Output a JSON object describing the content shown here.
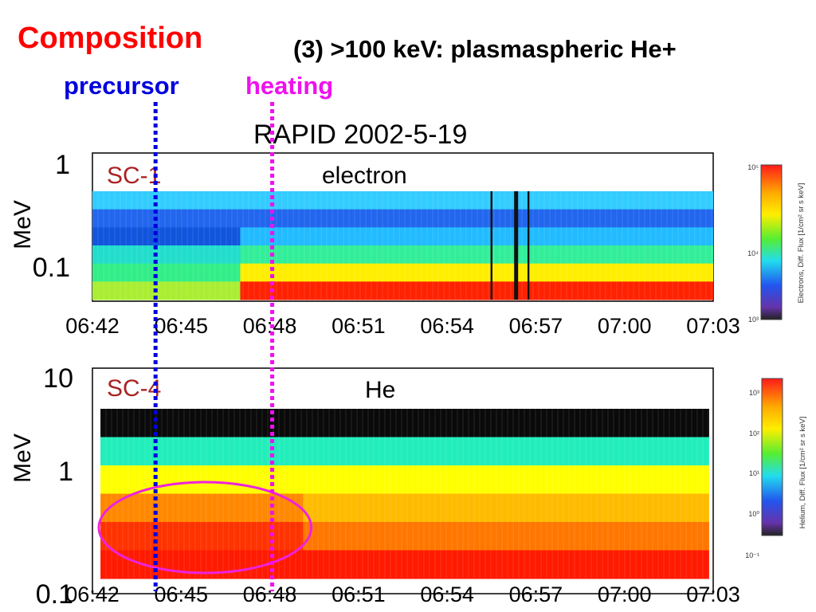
{
  "slide": {
    "title": "Composition",
    "subtitle": "(3) >100 keV: plasmaspheric He+",
    "markers": [
      {
        "label": "precursor",
        "color": "#0000dd",
        "time": "06:44"
      },
      {
        "label": "heating",
        "color": "#ee11ee",
        "time": "06:48"
      }
    ],
    "figure_title": "RAPID   2002-5-19"
  },
  "chart_data": [
    {
      "type": "heatmap",
      "panel_label": "SC-1",
      "species": "electron",
      "ylabel": "MeV",
      "yscale": "log",
      "y_tick_labels": [
        "1",
        "0.1"
      ],
      "x_tick_labels": [
        "06:42",
        "06:45",
        "06:48",
        "06:51",
        "06:54",
        "06:57",
        "07:00",
        "07:03"
      ],
      "xlim": [
        "06:42",
        "07:03"
      ],
      "colorbar": {
        "label": "Electrons, Diff. Flux [1/cm² sr s keV]",
        "scale": "log",
        "tick_labels": [
          "10⁵",
          "10⁴",
          "10³"
        ]
      },
      "bands": [
        {
          "row": 1,
          "segments": [
            {
              "from": "06:42",
              "to": "07:03",
              "color": "#33ccff"
            }
          ]
        },
        {
          "row": 2,
          "segments": [
            {
              "from": "06:42",
              "to": "07:03",
              "color": "#2266ee"
            }
          ]
        },
        {
          "row": 3,
          "segments": [
            {
              "from": "06:42",
              "to": "06:47",
              "color": "#1155dd"
            },
            {
              "from": "06:47",
              "to": "07:03",
              "color": "#22bbff"
            }
          ]
        },
        {
          "row": 4,
          "segments": [
            {
              "from": "06:42",
              "to": "06:47",
              "color": "#22ddcc"
            },
            {
              "from": "06:47",
              "to": "07:03",
              "color": "#33ee99"
            }
          ]
        },
        {
          "row": 5,
          "segments": [
            {
              "from": "06:42",
              "to": "06:47",
              "color": "#33ee88"
            },
            {
              "from": "06:47",
              "to": "07:03",
              "color": "#ffee00"
            }
          ]
        },
        {
          "row": 6,
          "segments": [
            {
              "from": "06:42",
              "to": "06:47",
              "color": "#aaee33"
            },
            {
              "from": "06:47",
              "to": "07:03",
              "color": "#ff2200"
            }
          ]
        }
      ],
      "data_gaps": [
        "06:55:30",
        "06:56:20",
        "06:56:45"
      ]
    },
    {
      "type": "heatmap",
      "panel_label": "SC-4",
      "species": "He",
      "ylabel": "MeV",
      "yscale": "log",
      "y_tick_labels": [
        "10",
        "1",
        "0.1"
      ],
      "x_tick_labels": [
        "06:42",
        "06:45",
        "06:48",
        "06:51",
        "06:54",
        "06:57",
        "07:00",
        "07:03"
      ],
      "xlim": [
        "06:42",
        "07:03"
      ],
      "colorbar": {
        "label": "Helium, Diff. Flux [1/cm² sr s keV]",
        "scale": "log",
        "tick_labels": [
          "10³",
          "10²",
          "10¹",
          "10⁰",
          "10⁻¹"
        ]
      },
      "bands": [
        {
          "row": 1,
          "segments": [
            {
              "from": "06:42",
              "to": "07:03",
              "color": "#0a0a0a"
            }
          ]
        },
        {
          "row": 2,
          "segments": [
            {
              "from": "06:42",
              "to": "07:03",
              "color": "#22eebb"
            }
          ]
        },
        {
          "row": 3,
          "segments": [
            {
              "from": "06:42",
              "to": "07:03",
              "color": "#ffff00"
            }
          ]
        },
        {
          "row": 4,
          "segments": [
            {
              "from": "06:42",
              "to": "06:49",
              "color": "#ff8800"
            },
            {
              "from": "06:49",
              "to": "07:03",
              "color": "#ffbb00"
            }
          ]
        },
        {
          "row": 5,
          "segments": [
            {
              "from": "06:42",
              "to": "06:49",
              "color": "#ff3300"
            },
            {
              "from": "06:49",
              "to": "07:03",
              "color": "#ff7700"
            }
          ]
        },
        {
          "row": 6,
          "segments": [
            {
              "from": "06:42",
              "to": "07:03",
              "color": "#ff1a00"
            }
          ]
        }
      ],
      "highlight": {
        "shape": "ellipse",
        "color": "#ee22dd",
        "from": "06:42",
        "to": "06:49"
      }
    }
  ]
}
